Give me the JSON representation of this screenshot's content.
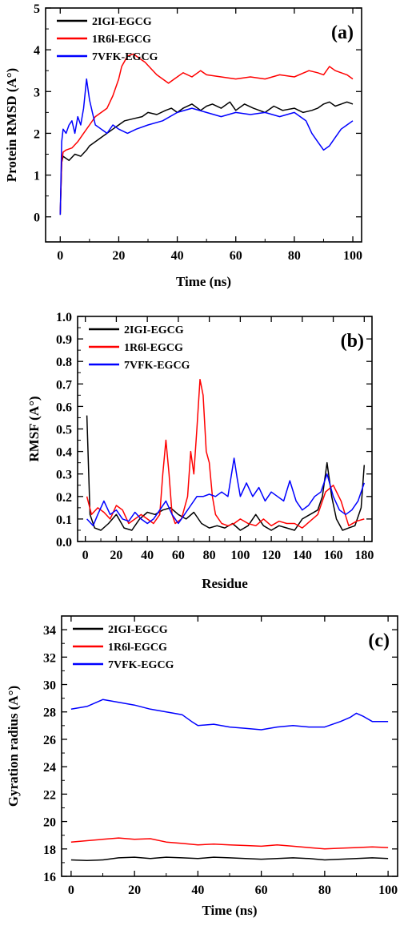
{
  "chart_data": [
    {
      "panel": "(a)",
      "type": "line",
      "xlabel": "Time (ns)",
      "ylabel": "Protein RMSD (A°)",
      "xlim": [
        -5,
        103
      ],
      "ylim": [
        -0.6,
        5
      ],
      "xticks": [
        0,
        20,
        40,
        60,
        80,
        100
      ],
      "yticks": [
        0,
        1,
        2,
        3,
        4,
        5
      ],
      "legend_position": "top-left",
      "series": [
        {
          "name": "2IGI-EGCG",
          "color": "#000000",
          "x": [
            0,
            0.5,
            1,
            2,
            3,
            5,
            7,
            9,
            10,
            12,
            14,
            16,
            18,
            20,
            22,
            25,
            28,
            30,
            33,
            36,
            38,
            40,
            42,
            45,
            48,
            50,
            52,
            55,
            58,
            60,
            63,
            66,
            70,
            73,
            76,
            80,
            83,
            86,
            88,
            90,
            92,
            94,
            96,
            98,
            100
          ],
          "y": [
            0.05,
            1.3,
            1.45,
            1.4,
            1.35,
            1.5,
            1.45,
            1.6,
            1.7,
            1.8,
            1.9,
            2.0,
            2.1,
            2.2,
            2.3,
            2.35,
            2.4,
            2.5,
            2.45,
            2.55,
            2.6,
            2.5,
            2.6,
            2.7,
            2.55,
            2.65,
            2.7,
            2.6,
            2.75,
            2.55,
            2.7,
            2.6,
            2.5,
            2.65,
            2.55,
            2.6,
            2.5,
            2.55,
            2.6,
            2.7,
            2.75,
            2.65,
            2.7,
            2.75,
            2.7
          ]
        },
        {
          "name": "1R6l-EGCG",
          "color": "#ff0000",
          "x": [
            0,
            0.5,
            1,
            2,
            4,
            6,
            8,
            10,
            12,
            14,
            16,
            18,
            20,
            21,
            23,
            25,
            27,
            29,
            31,
            33,
            35,
            37,
            39,
            42,
            45,
            48,
            50,
            55,
            60,
            65,
            70,
            75,
            80,
            85,
            88,
            90,
            92,
            94,
            96,
            98,
            100
          ],
          "y": [
            0.05,
            1.3,
            1.55,
            1.6,
            1.65,
            1.8,
            2.0,
            2.2,
            2.4,
            2.5,
            2.6,
            2.9,
            3.3,
            3.6,
            3.85,
            3.9,
            3.8,
            3.7,
            3.55,
            3.4,
            3.3,
            3.2,
            3.3,
            3.45,
            3.35,
            3.5,
            3.4,
            3.35,
            3.3,
            3.35,
            3.3,
            3.4,
            3.35,
            3.5,
            3.45,
            3.4,
            3.6,
            3.5,
            3.45,
            3.4,
            3.3
          ]
        },
        {
          "name": "7VFK-EGCG",
          "color": "#0000ff",
          "x": [
            0,
            0.5,
            1,
            2,
            3,
            4,
            5,
            6,
            7,
            8,
            9,
            10,
            11,
            12,
            14,
            16,
            18,
            20,
            23,
            26,
            30,
            35,
            40,
            45,
            50,
            55,
            60,
            65,
            70,
            75,
            80,
            84,
            86,
            88,
            90,
            92,
            94,
            96,
            98,
            100
          ],
          "y": [
            0.05,
            1.8,
            2.1,
            2.0,
            2.2,
            2.3,
            2.0,
            2.4,
            2.2,
            2.6,
            3.3,
            2.8,
            2.5,
            2.2,
            2.1,
            2.0,
            2.2,
            2.1,
            2.0,
            2.1,
            2.2,
            2.3,
            2.5,
            2.6,
            2.5,
            2.4,
            2.5,
            2.45,
            2.5,
            2.4,
            2.5,
            2.3,
            2.0,
            1.8,
            1.6,
            1.7,
            1.9,
            2.1,
            2.2,
            2.3
          ]
        }
      ]
    },
    {
      "panel": "(b)",
      "type": "line",
      "xlabel": "Residue",
      "ylabel": "RMSF (A°)",
      "xlim": [
        -5,
        185
      ],
      "ylim": [
        0,
        1.0
      ],
      "xticks": [
        0,
        20,
        40,
        60,
        80,
        100,
        120,
        140,
        160,
        180
      ],
      "yticks": [
        0.0,
        0.1,
        0.2,
        0.3,
        0.4,
        0.5,
        0.6,
        0.7,
        0.8,
        0.9,
        1.0
      ],
      "legend_position": "top-left",
      "series": [
        {
          "name": "2IGI-EGCG",
          "color": "#000000",
          "x": [
            1,
            3,
            6,
            10,
            15,
            20,
            25,
            30,
            35,
            40,
            45,
            50,
            55,
            60,
            65,
            70,
            75,
            80,
            85,
            90,
            95,
            100,
            105,
            110,
            115,
            120,
            125,
            130,
            135,
            140,
            145,
            150,
            153,
            156,
            159,
            162,
            166,
            170,
            174,
            178,
            180
          ],
          "y": [
            0.56,
            0.12,
            0.06,
            0.05,
            0.08,
            0.12,
            0.06,
            0.05,
            0.1,
            0.13,
            0.12,
            0.14,
            0.15,
            0.12,
            0.1,
            0.13,
            0.08,
            0.06,
            0.07,
            0.06,
            0.08,
            0.05,
            0.07,
            0.12,
            0.07,
            0.05,
            0.07,
            0.06,
            0.05,
            0.1,
            0.12,
            0.14,
            0.2,
            0.35,
            0.2,
            0.1,
            0.05,
            0.06,
            0.07,
            0.15,
            0.34
          ]
        },
        {
          "name": "1R6l-EGCG",
          "color": "#ff0000",
          "x": [
            1,
            4,
            8,
            12,
            16,
            20,
            24,
            28,
            32,
            36,
            40,
            44,
            48,
            50,
            52,
            54,
            56,
            58,
            62,
            66,
            68,
            70,
            72,
            74,
            76,
            78,
            80,
            82,
            84,
            88,
            92,
            96,
            100,
            105,
            110,
            115,
            120,
            125,
            130,
            135,
            140,
            145,
            150,
            155,
            160,
            165,
            170,
            175,
            180
          ],
          "y": [
            0.2,
            0.12,
            0.15,
            0.13,
            0.1,
            0.16,
            0.14,
            0.08,
            0.1,
            0.12,
            0.1,
            0.08,
            0.12,
            0.3,
            0.45,
            0.3,
            0.12,
            0.08,
            0.1,
            0.2,
            0.4,
            0.3,
            0.5,
            0.72,
            0.65,
            0.4,
            0.35,
            0.2,
            0.12,
            0.08,
            0.07,
            0.08,
            0.1,
            0.08,
            0.07,
            0.1,
            0.07,
            0.09,
            0.08,
            0.08,
            0.06,
            0.09,
            0.12,
            0.22,
            0.25,
            0.18,
            0.07,
            0.09,
            0.1
          ]
        },
        {
          "name": "7VFK-EGCG",
          "color": "#0000ff",
          "x": [
            1,
            5,
            8,
            12,
            16,
            20,
            24,
            28,
            32,
            36,
            40,
            44,
            48,
            52,
            56,
            60,
            64,
            68,
            72,
            76,
            80,
            84,
            88,
            92,
            96,
            98,
            100,
            104,
            108,
            112,
            116,
            120,
            124,
            128,
            132,
            136,
            140,
            144,
            148,
            152,
            156,
            160,
            164,
            168,
            172,
            176,
            180
          ],
          "y": [
            0.1,
            0.07,
            0.12,
            0.18,
            0.12,
            0.14,
            0.1,
            0.09,
            0.13,
            0.1,
            0.08,
            0.1,
            0.14,
            0.18,
            0.12,
            0.08,
            0.12,
            0.16,
            0.2,
            0.2,
            0.21,
            0.2,
            0.22,
            0.2,
            0.37,
            0.28,
            0.2,
            0.26,
            0.2,
            0.24,
            0.18,
            0.22,
            0.2,
            0.18,
            0.27,
            0.18,
            0.14,
            0.16,
            0.2,
            0.22,
            0.3,
            0.2,
            0.14,
            0.12,
            0.14,
            0.18,
            0.26
          ]
        }
      ]
    },
    {
      "panel": "(c)",
      "type": "line",
      "xlabel": "Time (ns)",
      "ylabel": "Gyration radius (A°)",
      "xlim": [
        -3,
        103
      ],
      "ylim": [
        16,
        35
      ],
      "xticks": [
        0,
        20,
        40,
        60,
        80,
        100
      ],
      "yticks": [
        16,
        18,
        20,
        22,
        24,
        26,
        28,
        30,
        32,
        34
      ],
      "legend_position": "top-left",
      "series": [
        {
          "name": "2IGI-EGCG",
          "color": "#000000",
          "x": [
            0,
            5,
            10,
            15,
            20,
            25,
            30,
            35,
            40,
            45,
            50,
            55,
            60,
            65,
            70,
            75,
            80,
            85,
            90,
            95,
            100
          ],
          "y": [
            17.2,
            17.15,
            17.2,
            17.35,
            17.4,
            17.3,
            17.4,
            17.35,
            17.3,
            17.4,
            17.35,
            17.3,
            17.25,
            17.3,
            17.35,
            17.3,
            17.2,
            17.25,
            17.3,
            17.35,
            17.3
          ]
        },
        {
          "name": "1R6l-EGCG",
          "color": "#ff0000",
          "x": [
            0,
            5,
            10,
            15,
            20,
            25,
            30,
            35,
            40,
            45,
            50,
            55,
            60,
            65,
            70,
            75,
            80,
            85,
            90,
            95,
            100
          ],
          "y": [
            18.5,
            18.6,
            18.7,
            18.8,
            18.7,
            18.75,
            18.5,
            18.4,
            18.3,
            18.35,
            18.3,
            18.25,
            18.2,
            18.3,
            18.2,
            18.1,
            18.0,
            18.05,
            18.1,
            18.15,
            18.1
          ]
        },
        {
          "name": "7VFK-EGCG",
          "color": "#0000ff",
          "x": [
            0,
            5,
            10,
            15,
            20,
            25,
            30,
            35,
            38,
            40,
            45,
            50,
            55,
            60,
            65,
            70,
            75,
            80,
            85,
            88,
            90,
            92,
            95,
            100
          ],
          "y": [
            28.2,
            28.4,
            28.9,
            28.7,
            28.5,
            28.2,
            28.0,
            27.8,
            27.3,
            27.0,
            27.1,
            26.9,
            26.8,
            26.7,
            26.9,
            27.0,
            26.9,
            26.9,
            27.3,
            27.6,
            27.9,
            27.7,
            27.3,
            27.3
          ]
        }
      ]
    }
  ],
  "panel_labels": [
    "(a)",
    "(b)",
    "(c)"
  ]
}
